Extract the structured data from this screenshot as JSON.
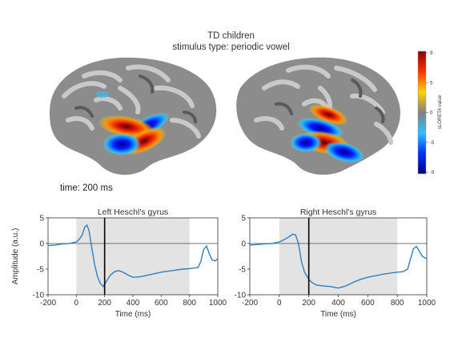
{
  "figure": {
    "title_line1": "TD children",
    "title_line2": "stimulus type: periodic vowel",
    "time_label": "time: 200 ms"
  },
  "colorbar": {
    "label": "sLORETA value",
    "ticks": [
      "9",
      "5",
      "0",
      "-5",
      "-9"
    ],
    "colors": [
      "#8b0000",
      "#ff3000",
      "#ffd200",
      "#808080",
      "#30c0ff",
      "#0030ff",
      "#00007f"
    ]
  },
  "chart_data": [
    {
      "type": "line",
      "title": "Left Heschl's gyrus",
      "xlabel": "Time (ms)",
      "ylabel": "Amplitude (a.u.)",
      "xlim": [
        -200,
        1000
      ],
      "ylim": [
        -10,
        5
      ],
      "xticks": [
        "-200",
        "0",
        "200",
        "400",
        "600",
        "800",
        "1000"
      ],
      "yticks": [
        "5",
        "0",
        "-5",
        "-10"
      ],
      "stimulus_window": [
        0,
        800
      ],
      "time_marker": 200,
      "color": "#2f7fc1",
      "x": [
        -200,
        -150,
        -100,
        -50,
        0,
        20,
        40,
        60,
        75,
        90,
        110,
        130,
        150,
        170,
        190,
        210,
        240,
        270,
        300,
        330,
        360,
        400,
        450,
        500,
        550,
        600,
        650,
        700,
        750,
        800,
        830,
        860,
        880,
        900,
        920,
        940,
        960,
        980,
        1000
      ],
      "y": [
        -0.4,
        -0.3,
        -0.1,
        0.0,
        0.3,
        0.8,
        1.6,
        3.2,
        3.6,
        2.5,
        -1.0,
        -4.2,
        -6.5,
        -7.8,
        -8.4,
        -7.5,
        -6.2,
        -5.5,
        -5.3,
        -5.6,
        -6.1,
        -6.6,
        -6.5,
        -6.2,
        -5.9,
        -5.6,
        -5.4,
        -5.2,
        -5.0,
        -4.9,
        -4.8,
        -4.7,
        -3.5,
        -1.2,
        -0.5,
        -2.0,
        -3.2,
        -3.4,
        -3.0
      ]
    },
    {
      "type": "line",
      "title": "Right Heschl's gyrus",
      "xlabel": "Time (ms)",
      "ylabel": "",
      "xlim": [
        -200,
        1000
      ],
      "ylim": [
        -10,
        5
      ],
      "xticks": [
        "-200",
        "0",
        "200",
        "400",
        "600",
        "800",
        "1000"
      ],
      "yticks": [
        "5",
        "0",
        "-5",
        "-10"
      ],
      "stimulus_window": [
        0,
        800
      ],
      "time_marker": 200,
      "color": "#2f7fc1",
      "x": [
        -200,
        -150,
        -100,
        -50,
        0,
        30,
        60,
        90,
        110,
        130,
        150,
        170,
        190,
        200,
        220,
        250,
        300,
        350,
        400,
        450,
        500,
        550,
        600,
        650,
        700,
        750,
        800,
        840,
        870,
        890,
        910,
        930,
        950,
        970,
        1000
      ],
      "y": [
        -0.3,
        -0.2,
        -0.1,
        0.0,
        0.3,
        0.7,
        1.2,
        1.8,
        1.7,
        0.0,
        -3.5,
        -5.5,
        -6.5,
        -7.0,
        -7.6,
        -8.1,
        -8.3,
        -8.4,
        -8.7,
        -8.3,
        -7.6,
        -7.0,
        -6.6,
        -6.3,
        -6.0,
        -5.8,
        -5.6,
        -5.5,
        -5.0,
        -3.0,
        -1.0,
        -0.6,
        -1.5,
        -2.5,
        -3.0
      ]
    }
  ]
}
